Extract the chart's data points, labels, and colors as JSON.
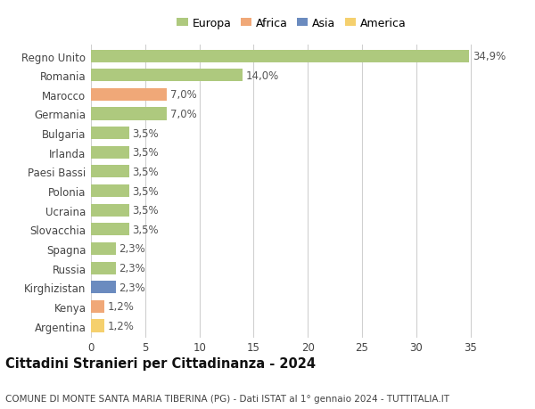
{
  "countries": [
    "Regno Unito",
    "Romania",
    "Marocco",
    "Germania",
    "Bulgaria",
    "Irlanda",
    "Paesi Bassi",
    "Polonia",
    "Ucraina",
    "Slovacchia",
    "Spagna",
    "Russia",
    "Kirghizistan",
    "Kenya",
    "Argentina"
  ],
  "values": [
    34.9,
    14.0,
    7.0,
    7.0,
    3.5,
    3.5,
    3.5,
    3.5,
    3.5,
    3.5,
    2.3,
    2.3,
    2.3,
    1.2,
    1.2
  ],
  "labels": [
    "34,9%",
    "14,0%",
    "7,0%",
    "7,0%",
    "3,5%",
    "3,5%",
    "3,5%",
    "3,5%",
    "3,5%",
    "3,5%",
    "2,3%",
    "2,3%",
    "2,3%",
    "1,2%",
    "1,2%"
  ],
  "colors": [
    "#aec97e",
    "#aec97e",
    "#f0a878",
    "#aec97e",
    "#aec97e",
    "#aec97e",
    "#aec97e",
    "#aec97e",
    "#aec97e",
    "#aec97e",
    "#aec97e",
    "#aec97e",
    "#6b8bbf",
    "#f0a878",
    "#f5d06e"
  ],
  "legend": [
    {
      "label": "Europa",
      "color": "#aec97e"
    },
    {
      "label": "Africa",
      "color": "#f0a878"
    },
    {
      "label": "Asia",
      "color": "#6b8bbf"
    },
    {
      "label": "America",
      "color": "#f5d06e"
    }
  ],
  "xlim": [
    0,
    37
  ],
  "xticks": [
    0,
    5,
    10,
    15,
    20,
    25,
    30,
    35
  ],
  "title": "Cittadini Stranieri per Cittadinanza - 2024",
  "subtitle": "COMUNE DI MONTE SANTA MARIA TIBERINA (PG) - Dati ISTAT al 1° gennaio 2024 - TUTTITALIA.IT",
  "bg_color": "#ffffff",
  "grid_color": "#d0d0d0",
  "bar_height": 0.65,
  "label_fontsize": 8.5,
  "tick_fontsize": 8.5,
  "title_fontsize": 10.5,
  "subtitle_fontsize": 7.5
}
